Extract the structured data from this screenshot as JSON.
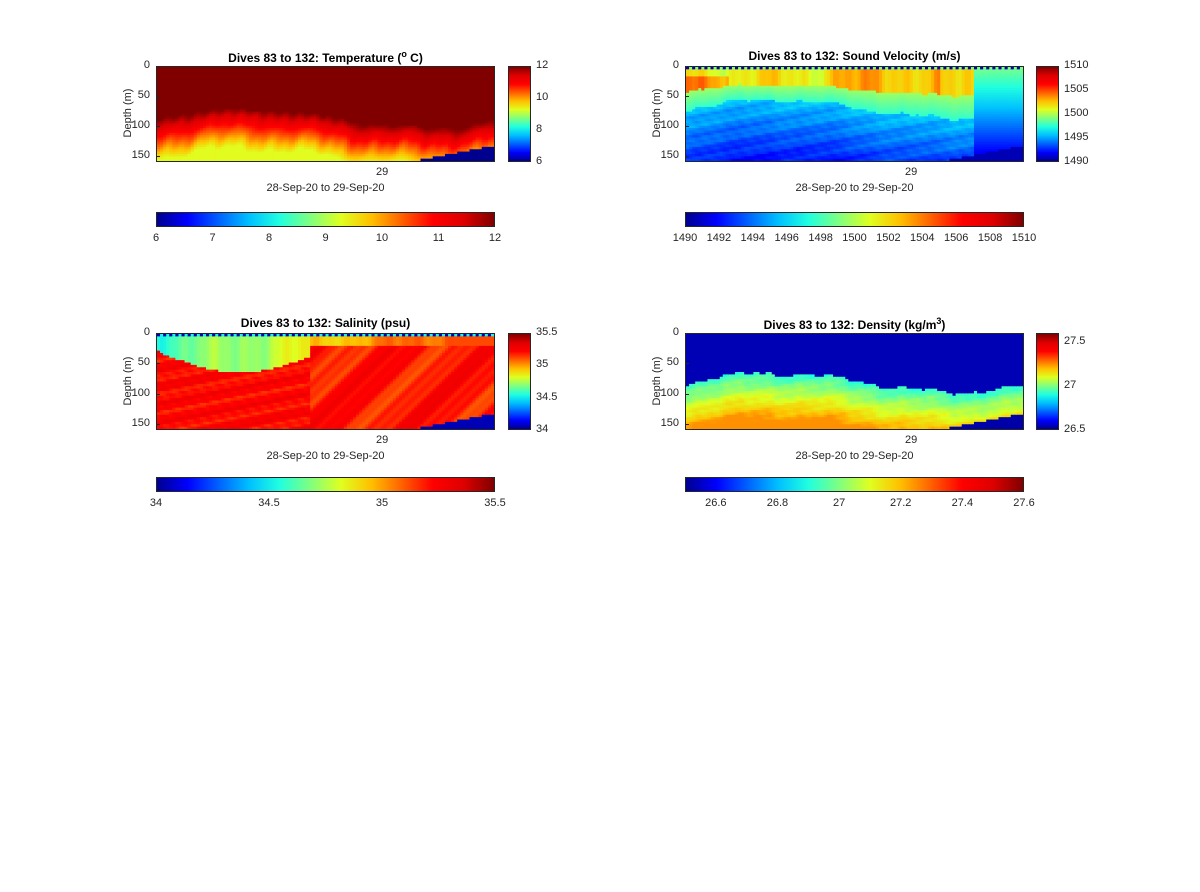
{
  "title_prefix": "Dives 83 to 132: ",
  "xlabel": "28-Sep-20 to 29-Sep-20",
  "ylabel": "Depth (m)",
  "colormap": [
    "#00008f",
    "#0000ff",
    "#0060ff",
    "#00bfff",
    "#20ffdf",
    "#80ff80",
    "#dfff20",
    "#ffbf00",
    "#ff6000",
    "#ff0000",
    "#df0000",
    "#800000"
  ],
  "chart_data": [
    {
      "type": "heatmap",
      "variable": "temperature",
      "title_main": "Temperature (",
      "title_sup": "o",
      "title_end": " C)",
      "xlabel": "28-Sep-20 to 29-Sep-20",
      "ylabel": "Depth (m)",
      "x_ticks": [
        "29"
      ],
      "y_ticks": [
        "0",
        "50",
        "100",
        "150"
      ],
      "ylim": [
        0,
        160
      ],
      "clim": [
        6,
        12
      ],
      "side_colorbar_ticks": [
        "12",
        "10",
        "8",
        "6"
      ],
      "bottom_colorbar_ticks": [
        "6",
        "7",
        "8",
        "9",
        "10",
        "11",
        "12"
      ]
    },
    {
      "type": "heatmap",
      "variable": "sound_velocity",
      "title_main": "Sound Velocity (m/s)",
      "title_sup": "",
      "title_end": "",
      "xlabel": "28-Sep-20 to 29-Sep-20",
      "ylabel": "Depth (m)",
      "x_ticks": [
        "29"
      ],
      "y_ticks": [
        "0",
        "50",
        "100",
        "150"
      ],
      "ylim": [
        0,
        160
      ],
      "clim": [
        1490,
        1510
      ],
      "side_colorbar_ticks": [
        "1510",
        "1505",
        "1500",
        "1495",
        "1490"
      ],
      "bottom_colorbar_ticks": [
        "1490",
        "1492",
        "1494",
        "1496",
        "1498",
        "1500",
        "1502",
        "1504",
        "1506",
        "1508",
        "1510"
      ]
    },
    {
      "type": "heatmap",
      "variable": "salinity",
      "title_main": "Salinity (psu)",
      "title_sup": "",
      "title_end": "",
      "xlabel": "28-Sep-20 to 29-Sep-20",
      "ylabel": "Depth (m)",
      "x_ticks": [
        "29"
      ],
      "y_ticks": [
        "0",
        "50",
        "100",
        "150"
      ],
      "ylim": [
        0,
        160
      ],
      "clim": [
        34,
        35.5
      ],
      "side_colorbar_ticks": [
        "35.5",
        "35",
        "34.5",
        "34"
      ],
      "bottom_colorbar_ticks": [
        "34",
        "34.5",
        "35",
        "35.5"
      ]
    },
    {
      "type": "heatmap",
      "variable": "density",
      "title_main": "Density (kg/m",
      "title_sup": "3",
      "title_end": ")",
      "xlabel": "28-Sep-20 to 29-Sep-20",
      "ylabel": "Depth (m)",
      "x_ticks": [
        "29"
      ],
      "y_ticks": [
        "0",
        "50",
        "100",
        "150"
      ],
      "ylim": [
        0,
        160
      ],
      "clim": [
        26.5,
        27.6
      ],
      "side_colorbar_ticks": [
        "27.5",
        "27",
        "26.5"
      ],
      "bottom_colorbar_ticks": [
        "26.6",
        "26.8",
        "27",
        "27.2",
        "27.4",
        "27.6"
      ]
    }
  ]
}
